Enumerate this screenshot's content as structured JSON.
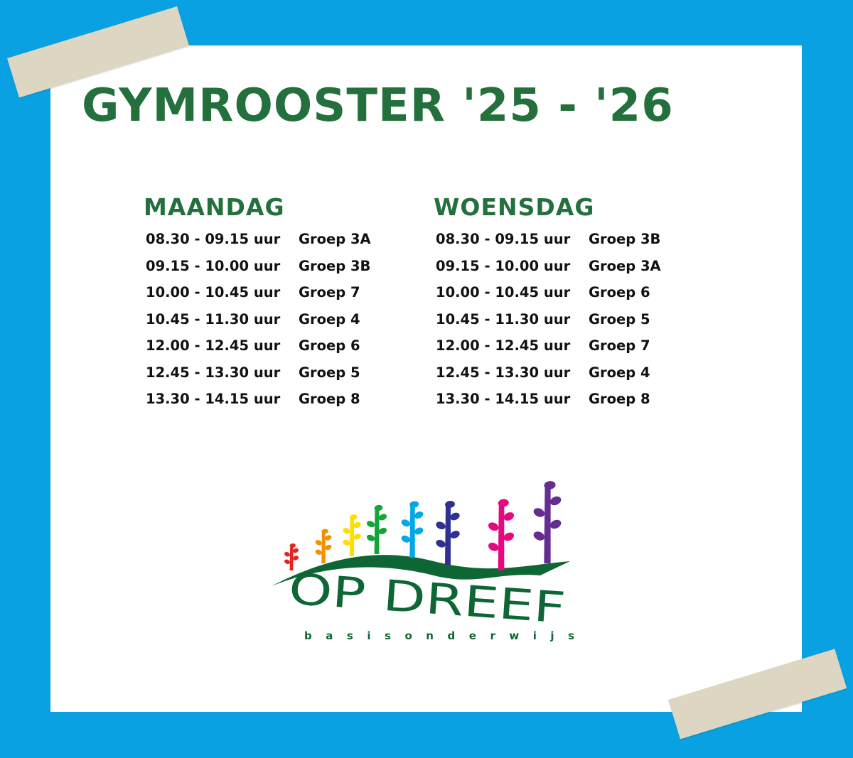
{
  "title": "GYMROOSTER '25 - '26",
  "days": [
    {
      "name": "MAANDAG",
      "rows": [
        {
          "time": "08.30 - 09.15 uur",
          "group": "Groep 3A"
        },
        {
          "time": "09.15 - 10.00 uur",
          "group": "Groep 3B"
        },
        {
          "time": "10.00 - 10.45 uur",
          "group": "Groep 7"
        },
        {
          "time": "10.45 - 11.30 uur",
          "group": "Groep 4"
        },
        {
          "time": "12.00 - 12.45 uur",
          "group": "Groep 6"
        },
        {
          "time": "12.45 - 13.30 uur",
          "group": "Groep 5"
        },
        {
          "time": "13.30 - 14.15 uur",
          "group": "Groep 8"
        }
      ]
    },
    {
      "name": "WOENSDAG",
      "rows": [
        {
          "time": "08.30 - 09.15 uur",
          "group": "Groep 3B"
        },
        {
          "time": "09.15 - 10.00 uur",
          "group": "Groep 3A"
        },
        {
          "time": "10.00 - 10.45 uur",
          "group": "Groep 6"
        },
        {
          "time": "10.45 - 11.30 uur",
          "group": "Groep 5"
        },
        {
          "time": "12.00 - 12.45 uur",
          "group": "Groep 7"
        },
        {
          "time": "12.45 - 13.30 uur",
          "group": "Groep 4"
        },
        {
          "time": "13.30 - 14.15 uur",
          "group": "Groep 8"
        }
      ]
    }
  ],
  "logo": {
    "name": "OP DREEF",
    "subtitle": "basisonderwijs"
  },
  "colors": {
    "background": "#09a1e1",
    "green": "#23703c",
    "tape": "#dcd6c2",
    "trees": [
      "#e52421",
      "#f39200",
      "#ffde00",
      "#13a538",
      "#00a8e6",
      "#2e3192",
      "#e5097f",
      "#662d91"
    ]
  }
}
